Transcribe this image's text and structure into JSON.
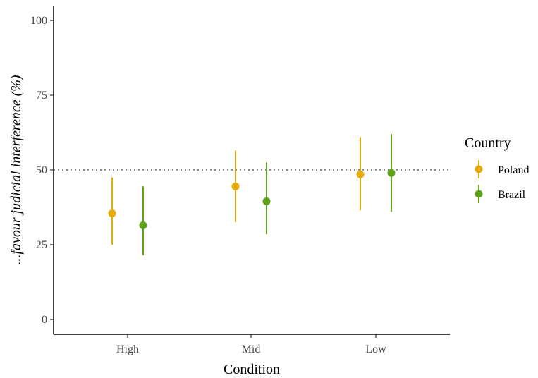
{
  "chart_data": {
    "type": "scatter",
    "xlabel": "Condition",
    "ylabel": "...favour judicial interference (%)",
    "categories": [
      "High",
      "Mid",
      "Low"
    ],
    "ylim": [
      0,
      100
    ],
    "yticks": [
      "0",
      "25",
      "50",
      "75",
      "100"
    ],
    "reference_line": {
      "y": 50,
      "style": "dotted"
    },
    "grid": false,
    "legend": {
      "title": "Country",
      "placement": "right"
    },
    "series": [
      {
        "name": "Poland",
        "color": "#E6AC0B",
        "values": [
          35.5,
          44.5,
          48.5
        ],
        "ci_low": [
          25,
          32.5,
          36.5
        ],
        "ci_high": [
          47.5,
          56.5,
          61
        ]
      },
      {
        "name": "Brazil",
        "color": "#5FA31B",
        "values": [
          31.5,
          39.5,
          49
        ],
        "ci_low": [
          21.5,
          28.5,
          36
        ],
        "ci_high": [
          44.5,
          52.5,
          62
        ]
      }
    ]
  }
}
